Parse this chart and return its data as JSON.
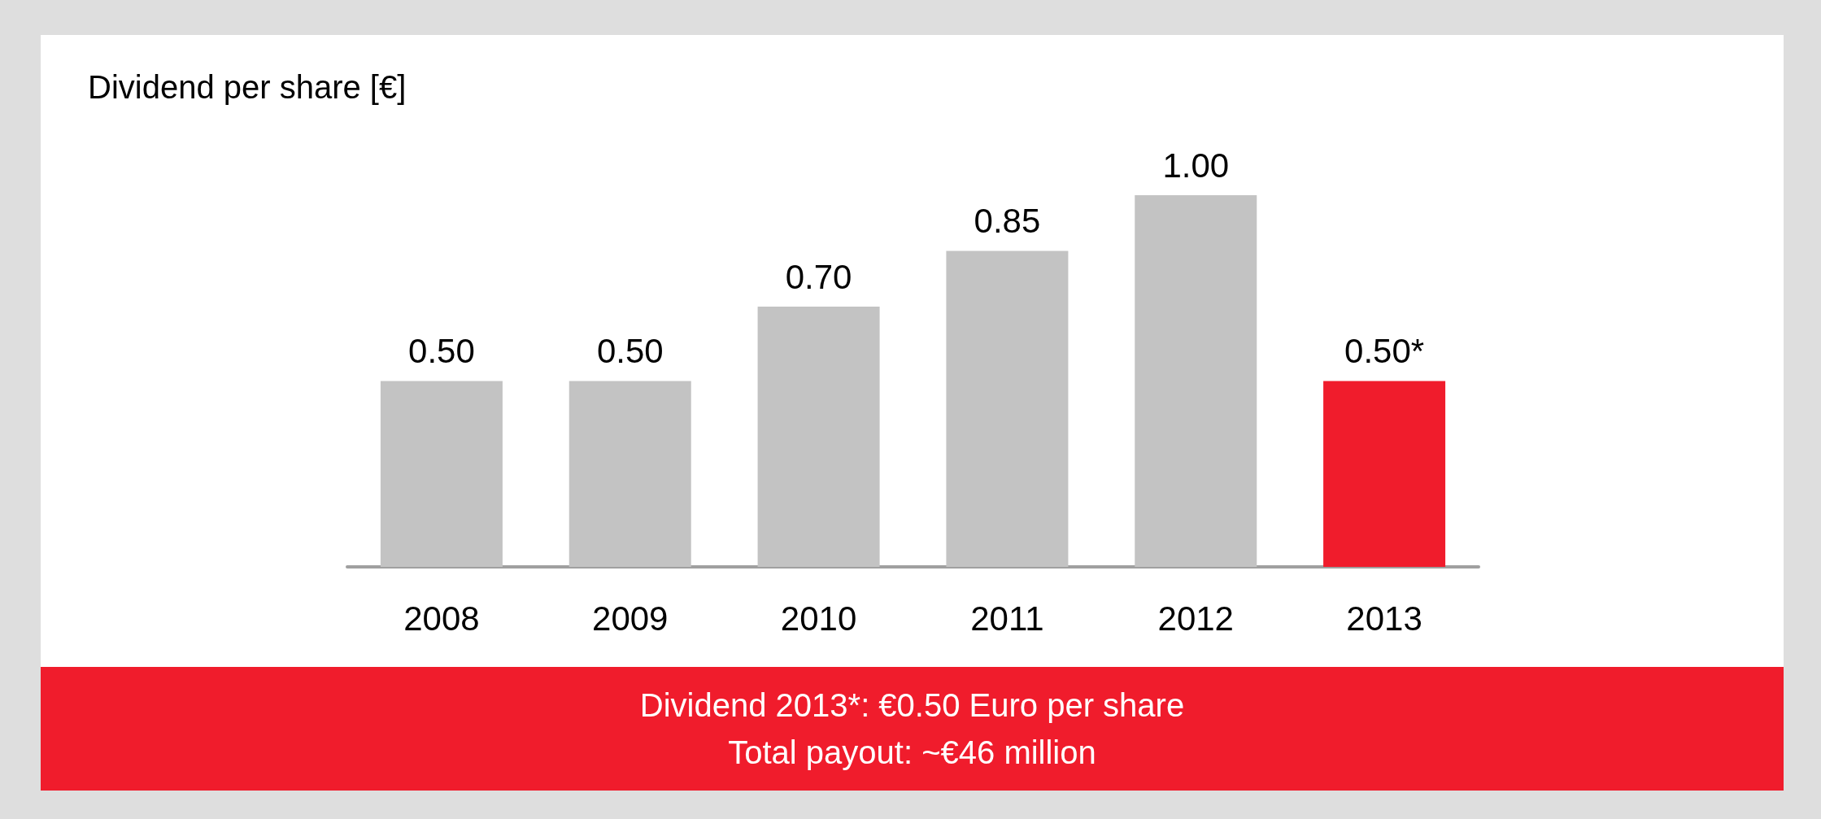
{
  "chart_data": {
    "type": "bar",
    "title": "Dividend per share [€]",
    "categories": [
      "2008",
      "2009",
      "2010",
      "2011",
      "2012",
      "2013"
    ],
    "values": [
      0.5,
      0.5,
      0.7,
      0.85,
      1.0,
      0.5
    ],
    "colors": [
      "#c3c3c3",
      "#c3c3c3",
      "#c3c3c3",
      "#c3c3c3",
      "#c3c3c3",
      "#f01c2c"
    ],
    "value_labels": [
      "0.50",
      "0.50",
      "0.70",
      "0.85",
      "1.00",
      "0.50*"
    ],
    "annotations": [
      "Dividend 2013*: €0.50 Euro per share",
      "Total payout: ~€46 million"
    ]
  }
}
